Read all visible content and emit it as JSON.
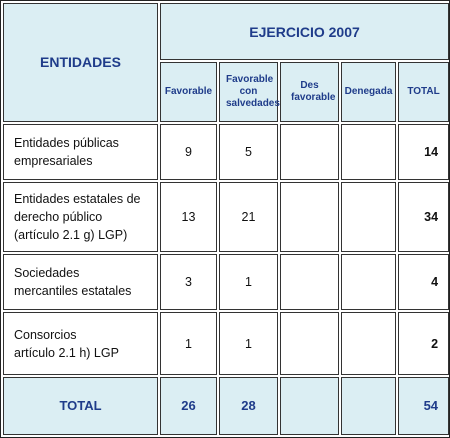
{
  "header": {
    "entities_label": "ENTIDADES",
    "exercise_label": "EJERCICIO 2007",
    "columns": [
      "Favorable",
      "Favorable con salvedades",
      "Des favorable",
      "Denegada",
      "TOTAL"
    ]
  },
  "rows": [
    {
      "entity_lines": [
        "Entidades públicas",
        "empresariales"
      ],
      "favorable": "9",
      "favorable_salvedades": "5",
      "desfavorable": "",
      "denegada": "",
      "total": "14"
    },
    {
      "entity_lines": [
        "Entidades estatales de",
        "derecho público",
        "(artículo 2.1 g) LGP)"
      ],
      "favorable": "13",
      "favorable_salvedades": "21",
      "desfavorable": "",
      "denegada": "",
      "total": "34"
    },
    {
      "entity_lines": [
        "Sociedades",
        "mercantiles estatales"
      ],
      "favorable": "3",
      "favorable_salvedades": "1",
      "desfavorable": "",
      "denegada": "",
      "total": "4"
    },
    {
      "entity_lines": [
        "Consorcios",
        "artículo 2.1 h) LGP"
      ],
      "favorable": "1",
      "favorable_salvedades": "1",
      "desfavorable": "",
      "denegada": "",
      "total": "2"
    }
  ],
  "footer": {
    "label": "TOTAL",
    "favorable": "26",
    "favorable_salvedades": "28",
    "desfavorable": "",
    "denegada": "",
    "total": "54"
  },
  "colors": {
    "header_background": "#dbeef3",
    "header_text": "#1f3c8a",
    "border": "#333333"
  }
}
